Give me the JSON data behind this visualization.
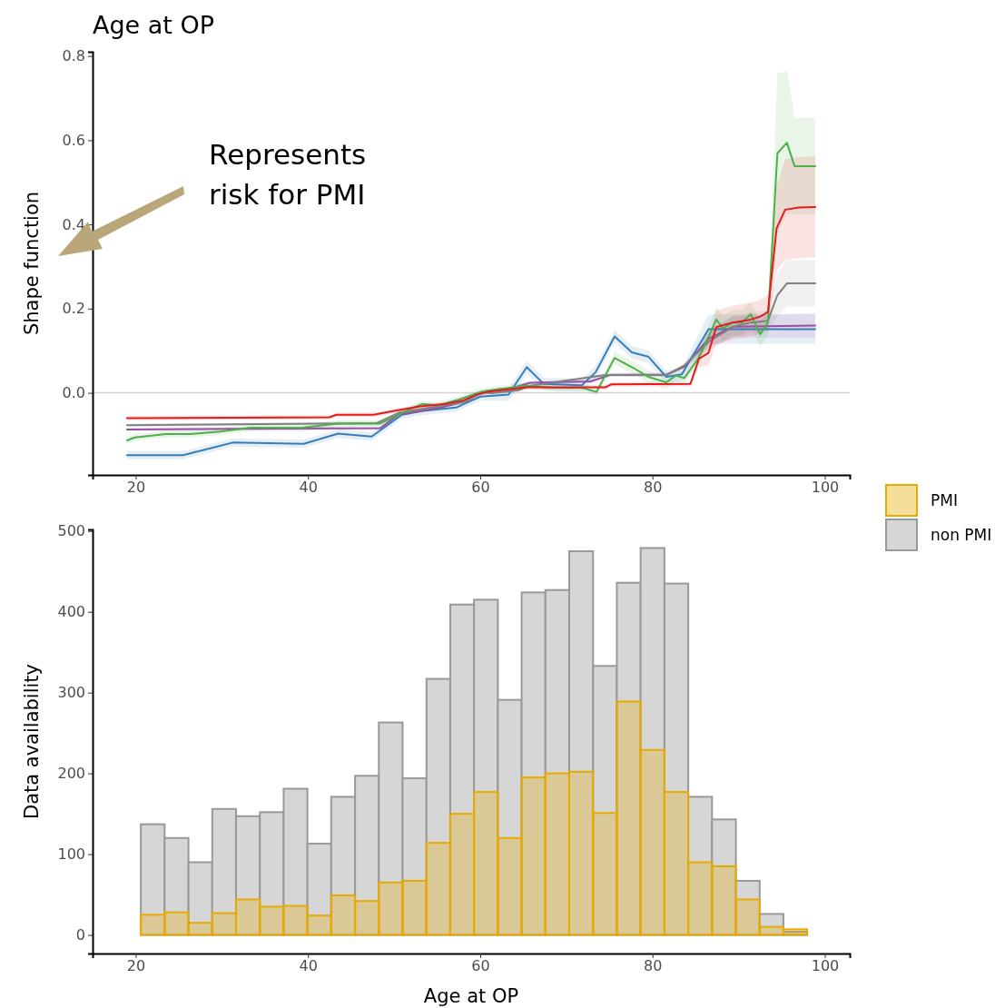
{
  "chart_data": [
    {
      "type": "line",
      "title": "Age at OP",
      "ylabel": "Shape function",
      "annotations": [
        "Represents risk for PMI"
      ],
      "xlim": [
        15,
        102.9
      ],
      "xticks": [
        20,
        40,
        60,
        80,
        100
      ],
      "ylim": [
        -0.195,
        0.81
      ],
      "yticks": [
        {
          "value": 0,
          "label": "0.0"
        },
        {
          "value": 0.2,
          "label": "0.2"
        },
        {
          "value": 0.4,
          "label": "0.4"
        },
        {
          "value": 0.6,
          "label": "0.6"
        },
        {
          "value": 0.8,
          "label": "0.8"
        }
      ],
      "ref_lines": [
        {
          "axis": "y",
          "value": 0,
          "color": "#d3d3d3"
        }
      ],
      "grid": false,
      "legend": false,
      "series": [
        {
          "color": "#377eb8",
          "x": [
            19,
            25.5,
            31.3,
            39.5,
            43.5,
            47.4,
            50.9,
            53.3,
            57.2,
            60,
            63.3,
            65.4,
            67.4,
            71.8,
            73.4,
            75.6,
            77.6,
            79.5,
            81.6,
            83.4,
            86.5,
            98.9
          ],
          "values": [
            -0.148,
            -0.148,
            -0.118,
            -0.121,
            -0.097,
            -0.104,
            -0.052,
            -0.043,
            -0.035,
            -0.009,
            -0.004,
            0.061,
            0.021,
            0.018,
            0.049,
            0.134,
            0.096,
            0.086,
            0.038,
            0.044,
            0.151,
            0.151
          ],
          "lower": [
            -0.158,
            -0.158,
            -0.128,
            -0.131,
            -0.107,
            -0.114,
            -0.062,
            -0.053,
            -0.045,
            -0.019,
            -0.019,
            0.046,
            0.006,
            0.003,
            0.034,
            0.119,
            0.081,
            0.071,
            0.023,
            0.029,
            0.116,
            0.116
          ],
          "upper": [
            -0.138,
            -0.138,
            -0.108,
            -0.111,
            -0.087,
            -0.094,
            -0.042,
            -0.033,
            -0.025,
            0.001,
            0.011,
            0.076,
            0.036,
            0.033,
            0.064,
            0.149,
            0.111,
            0.101,
            0.053,
            0.059,
            0.186,
            0.186
          ]
        },
        {
          "color": "#984ea3",
          "x": [
            19,
            48.4,
            50.5,
            55.4,
            58.2,
            60.3,
            61.2,
            63.3,
            65.8,
            72.8,
            75.2,
            81.6,
            83.7,
            86.5,
            89.3,
            98.9
          ],
          "values": [
            -0.087,
            -0.084,
            -0.052,
            -0.035,
            -0.021,
            0.003,
            0.005,
            0.009,
            0.024,
            0.027,
            0.043,
            0.043,
            0.062,
            0.128,
            0.157,
            0.16
          ],
          "lower": [
            -0.091,
            -0.088,
            -0.056,
            -0.039,
            -0.025,
            -0.001,
            0.001,
            0.005,
            0.02,
            0.023,
            0.039,
            0.039,
            0.058,
            0.108,
            0.132,
            0.13
          ],
          "upper": [
            -0.083,
            -0.08,
            -0.048,
            -0.031,
            -0.017,
            0.007,
            0.009,
            0.013,
            0.028,
            0.031,
            0.047,
            0.047,
            0.066,
            0.148,
            0.182,
            0.19
          ]
        },
        {
          "color": "#808080",
          "x": [
            19,
            48,
            50.5,
            58.2,
            60.3,
            61.2,
            64.4,
            65.8,
            74.5,
            81.6,
            83.7,
            86.5,
            89.3,
            91.4,
            93.4,
            94.5,
            95.6,
            98.9
          ],
          "values": [
            -0.077,
            -0.072,
            -0.048,
            -0.021,
            0.002,
            -0.001,
            0.006,
            0.017,
            0.042,
            0.042,
            0.065,
            0.121,
            0.157,
            0.167,
            0.171,
            0.232,
            0.26,
            0.26
          ],
          "lower": [
            -0.081,
            -0.076,
            -0.052,
            -0.025,
            -0.002,
            -0.005,
            0.002,
            0.013,
            0.038,
            0.038,
            0.061,
            0.101,
            0.132,
            0.142,
            0.146,
            0.182,
            0.205,
            0.205
          ],
          "upper": [
            -0.073,
            -0.068,
            -0.044,
            -0.017,
            0.006,
            0.003,
            0.01,
            0.021,
            0.046,
            0.046,
            0.069,
            0.141,
            0.182,
            0.192,
            0.196,
            0.282,
            0.315,
            0.315
          ]
        },
        {
          "color": "#4daf4a",
          "x": [
            19,
            19.9,
            23.5,
            26.3,
            29.8,
            33.3,
            39.3,
            43.5,
            48.4,
            50.9,
            53.3,
            55.1,
            57.5,
            60,
            62.1,
            65.4,
            68.6,
            71.8,
            73.5,
            75.6,
            77.7,
            79.5,
            81.6,
            82.7,
            83.7,
            85.4,
            87.4,
            88.2,
            89.3,
            90.4,
            91.4,
            92.5,
            93.4,
            94.5,
            95.6,
            96.5,
            98.9
          ],
          "values": [
            -0.113,
            -0.106,
            -0.098,
            -0.098,
            -0.092,
            -0.083,
            -0.083,
            -0.073,
            -0.073,
            -0.048,
            -0.026,
            -0.03,
            -0.016,
            0.002,
            0.009,
            0.017,
            0.012,
            0.012,
            0.002,
            0.083,
            0.06,
            0.038,
            0.025,
            0.041,
            0.035,
            0.084,
            0.174,
            0.153,
            0.167,
            0.167,
            0.187,
            0.139,
            0.167,
            0.569,
            0.594,
            0.538,
            0.538
          ],
          "lower": [
            -0.121,
            -0.114,
            -0.106,
            -0.106,
            -0.1,
            -0.091,
            -0.091,
            -0.081,
            -0.081,
            -0.056,
            -0.034,
            -0.038,
            -0.024,
            -0.006,
            0.001,
            0.009,
            0.004,
            0.004,
            -0.006,
            0.068,
            0.045,
            0.023,
            0.01,
            0.026,
            0.02,
            0.069,
            0.144,
            0.123,
            0.137,
            0.137,
            0.157,
            0.109,
            0.137,
            0.379,
            0.424,
            0.423,
            0.423
          ],
          "upper": [
            -0.105,
            -0.098,
            -0.09,
            -0.09,
            -0.084,
            -0.075,
            -0.075,
            -0.065,
            -0.065,
            -0.04,
            -0.018,
            -0.022,
            -0.008,
            0.01,
            0.017,
            0.025,
            0.02,
            0.02,
            0.01,
            0.098,
            0.075,
            0.053,
            0.04,
            0.056,
            0.05,
            0.099,
            0.204,
            0.183,
            0.197,
            0.197,
            0.217,
            0.169,
            0.197,
            0.759,
            0.764,
            0.653,
            0.653
          ]
        },
        {
          "color": "#e41a1c",
          "x": [
            19,
            42.5,
            43.3,
            47.6,
            50,
            53,
            56,
            58,
            59.5,
            61,
            65.4,
            74.5,
            75.2,
            84.4,
            85.4,
            86.5,
            87.4,
            89.3,
            91.4,
            92.5,
            93.4,
            94.4,
            95.4,
            97,
            98.9
          ],
          "values": [
            -0.06,
            -0.058,
            -0.052,
            -0.052,
            -0.043,
            -0.032,
            -0.026,
            -0.018,
            -0.005,
            0.003,
            0.013,
            0.013,
            0.02,
            0.021,
            0.081,
            0.095,
            0.156,
            0.167,
            0.174,
            0.181,
            0.192,
            0.39,
            0.435,
            0.44,
            0.441
          ],
          "lower": [
            -0.065,
            -0.063,
            -0.057,
            -0.057,
            -0.048,
            -0.037,
            -0.031,
            -0.023,
            -0.01,
            -0.002,
            0.008,
            0.008,
            0.015,
            0.016,
            0.061,
            0.065,
            0.116,
            0.127,
            0.134,
            0.141,
            0.152,
            0.29,
            0.315,
            0.32,
            0.321
          ],
          "upper": [
            -0.055,
            -0.053,
            -0.047,
            -0.047,
            -0.038,
            -0.027,
            -0.021,
            -0.013,
            0.0,
            0.008,
            0.018,
            0.018,
            0.025,
            0.026,
            0.101,
            0.125,
            0.196,
            0.207,
            0.214,
            0.221,
            0.232,
            0.49,
            0.555,
            0.56,
            0.561
          ]
        }
      ]
    },
    {
      "type": "histogram",
      "xlabel": "Age at OP",
      "ylabel": "Data availability",
      "xlim": [
        15,
        102.9
      ],
      "xticks": [
        20,
        40,
        60,
        80,
        100
      ],
      "ylim": [
        -23,
        502
      ],
      "yticks": [
        0,
        100,
        200,
        300,
        400,
        500
      ],
      "grid": false,
      "legend": "right",
      "bins": [
        20.6,
        23.36,
        26.13,
        28.89,
        31.65,
        34.42,
        37.18,
        39.94,
        42.7,
        45.47,
        48.23,
        50.99,
        53.76,
        56.52,
        59.28,
        62.05,
        64.81,
        67.57,
        70.33,
        73.1,
        75.86,
        78.62,
        81.39,
        84.15,
        86.91,
        89.68,
        92.44,
        95.2,
        97.96
      ],
      "series": [
        {
          "name": "PMI",
          "color": "#e6ab02",
          "values": [
            25,
            28,
            15,
            27,
            44,
            35,
            36,
            24,
            49,
            42,
            65,
            67,
            114,
            150,
            177,
            120,
            195,
            200,
            202,
            151,
            289,
            229,
            177,
            90,
            85,
            44,
            10,
            7
          ]
        },
        {
          "name": "non PMI",
          "color": "#999999",
          "values": [
            137,
            120,
            90,
            156,
            147,
            152,
            181,
            113,
            171,
            197,
            263,
            194,
            317,
            409,
            415,
            291,
            424,
            427,
            475,
            333,
            436,
            479,
            435,
            171,
            143,
            67,
            26,
            4
          ]
        }
      ]
    }
  ]
}
